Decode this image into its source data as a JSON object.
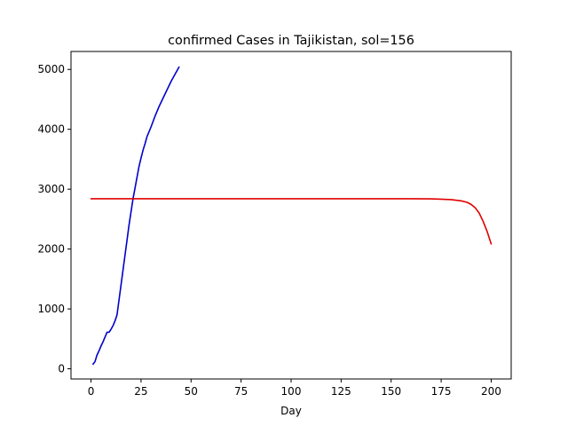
{
  "chart_data": {
    "type": "line",
    "title": "confirmed Cases in Tajikistan, sol=156",
    "xlabel": "Day",
    "ylabel": "",
    "xlim": [
      -10,
      210
    ],
    "ylim": [
      -170,
      5300
    ],
    "xticks": [
      0,
      25,
      50,
      75,
      100,
      125,
      150,
      175,
      200
    ],
    "yticks": [
      0,
      1000,
      2000,
      3000,
      4000,
      5000
    ],
    "grid": false,
    "legend": "none",
    "series": [
      {
        "color": "#0000cc",
        "x": [
          1,
          2,
          3,
          4,
          5,
          6,
          7,
          8,
          9,
          10,
          11,
          12,
          13,
          14,
          15,
          16,
          17,
          18,
          19,
          20,
          21,
          22,
          23,
          24,
          25,
          26,
          27,
          28,
          29,
          30,
          32,
          34,
          36,
          38,
          40,
          42,
          44
        ],
        "y": [
          76,
          120,
          230,
          300,
          380,
          450,
          530,
          610,
          610,
          660,
          720,
          800,
          900,
          1150,
          1400,
          1650,
          1900,
          2150,
          2400,
          2620,
          2840,
          3020,
          3200,
          3380,
          3520,
          3650,
          3760,
          3880,
          3960,
          4040,
          4220,
          4380,
          4520,
          4660,
          4800,
          4920,
          5040
        ]
      },
      {
        "color": "#e00000",
        "x": [
          0,
          20,
          40,
          60,
          80,
          100,
          120,
          140,
          160,
          170,
          175,
          180,
          185,
          188,
          190,
          192,
          194,
          196,
          198,
          200
        ],
        "y": [
          2840,
          2840,
          2840,
          2840,
          2840,
          2840,
          2840,
          2840,
          2840,
          2838,
          2833,
          2825,
          2805,
          2780,
          2745,
          2690,
          2600,
          2460,
          2290,
          2085
        ]
      }
    ]
  }
}
